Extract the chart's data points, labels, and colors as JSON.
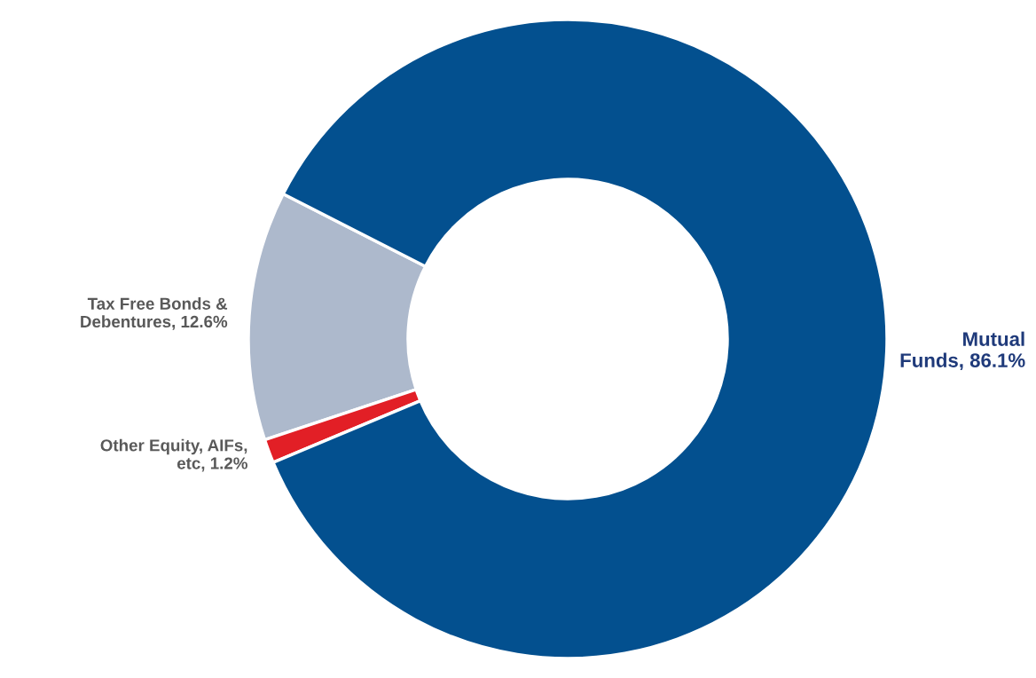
{
  "chart_data": {
    "type": "donut",
    "categories": [
      "Tax Free Bonds & Debentures",
      "Other Equity, AIFs, etc",
      "Mutual Funds"
    ],
    "value_labels": [
      "12.6%",
      "1.2%",
      "86.1%"
    ],
    "values": [
      12.6,
      1.2,
      86.1
    ],
    "colors": [
      "#adb9cc",
      "#e21f26",
      "#03508f"
    ],
    "legend": false
  }
}
